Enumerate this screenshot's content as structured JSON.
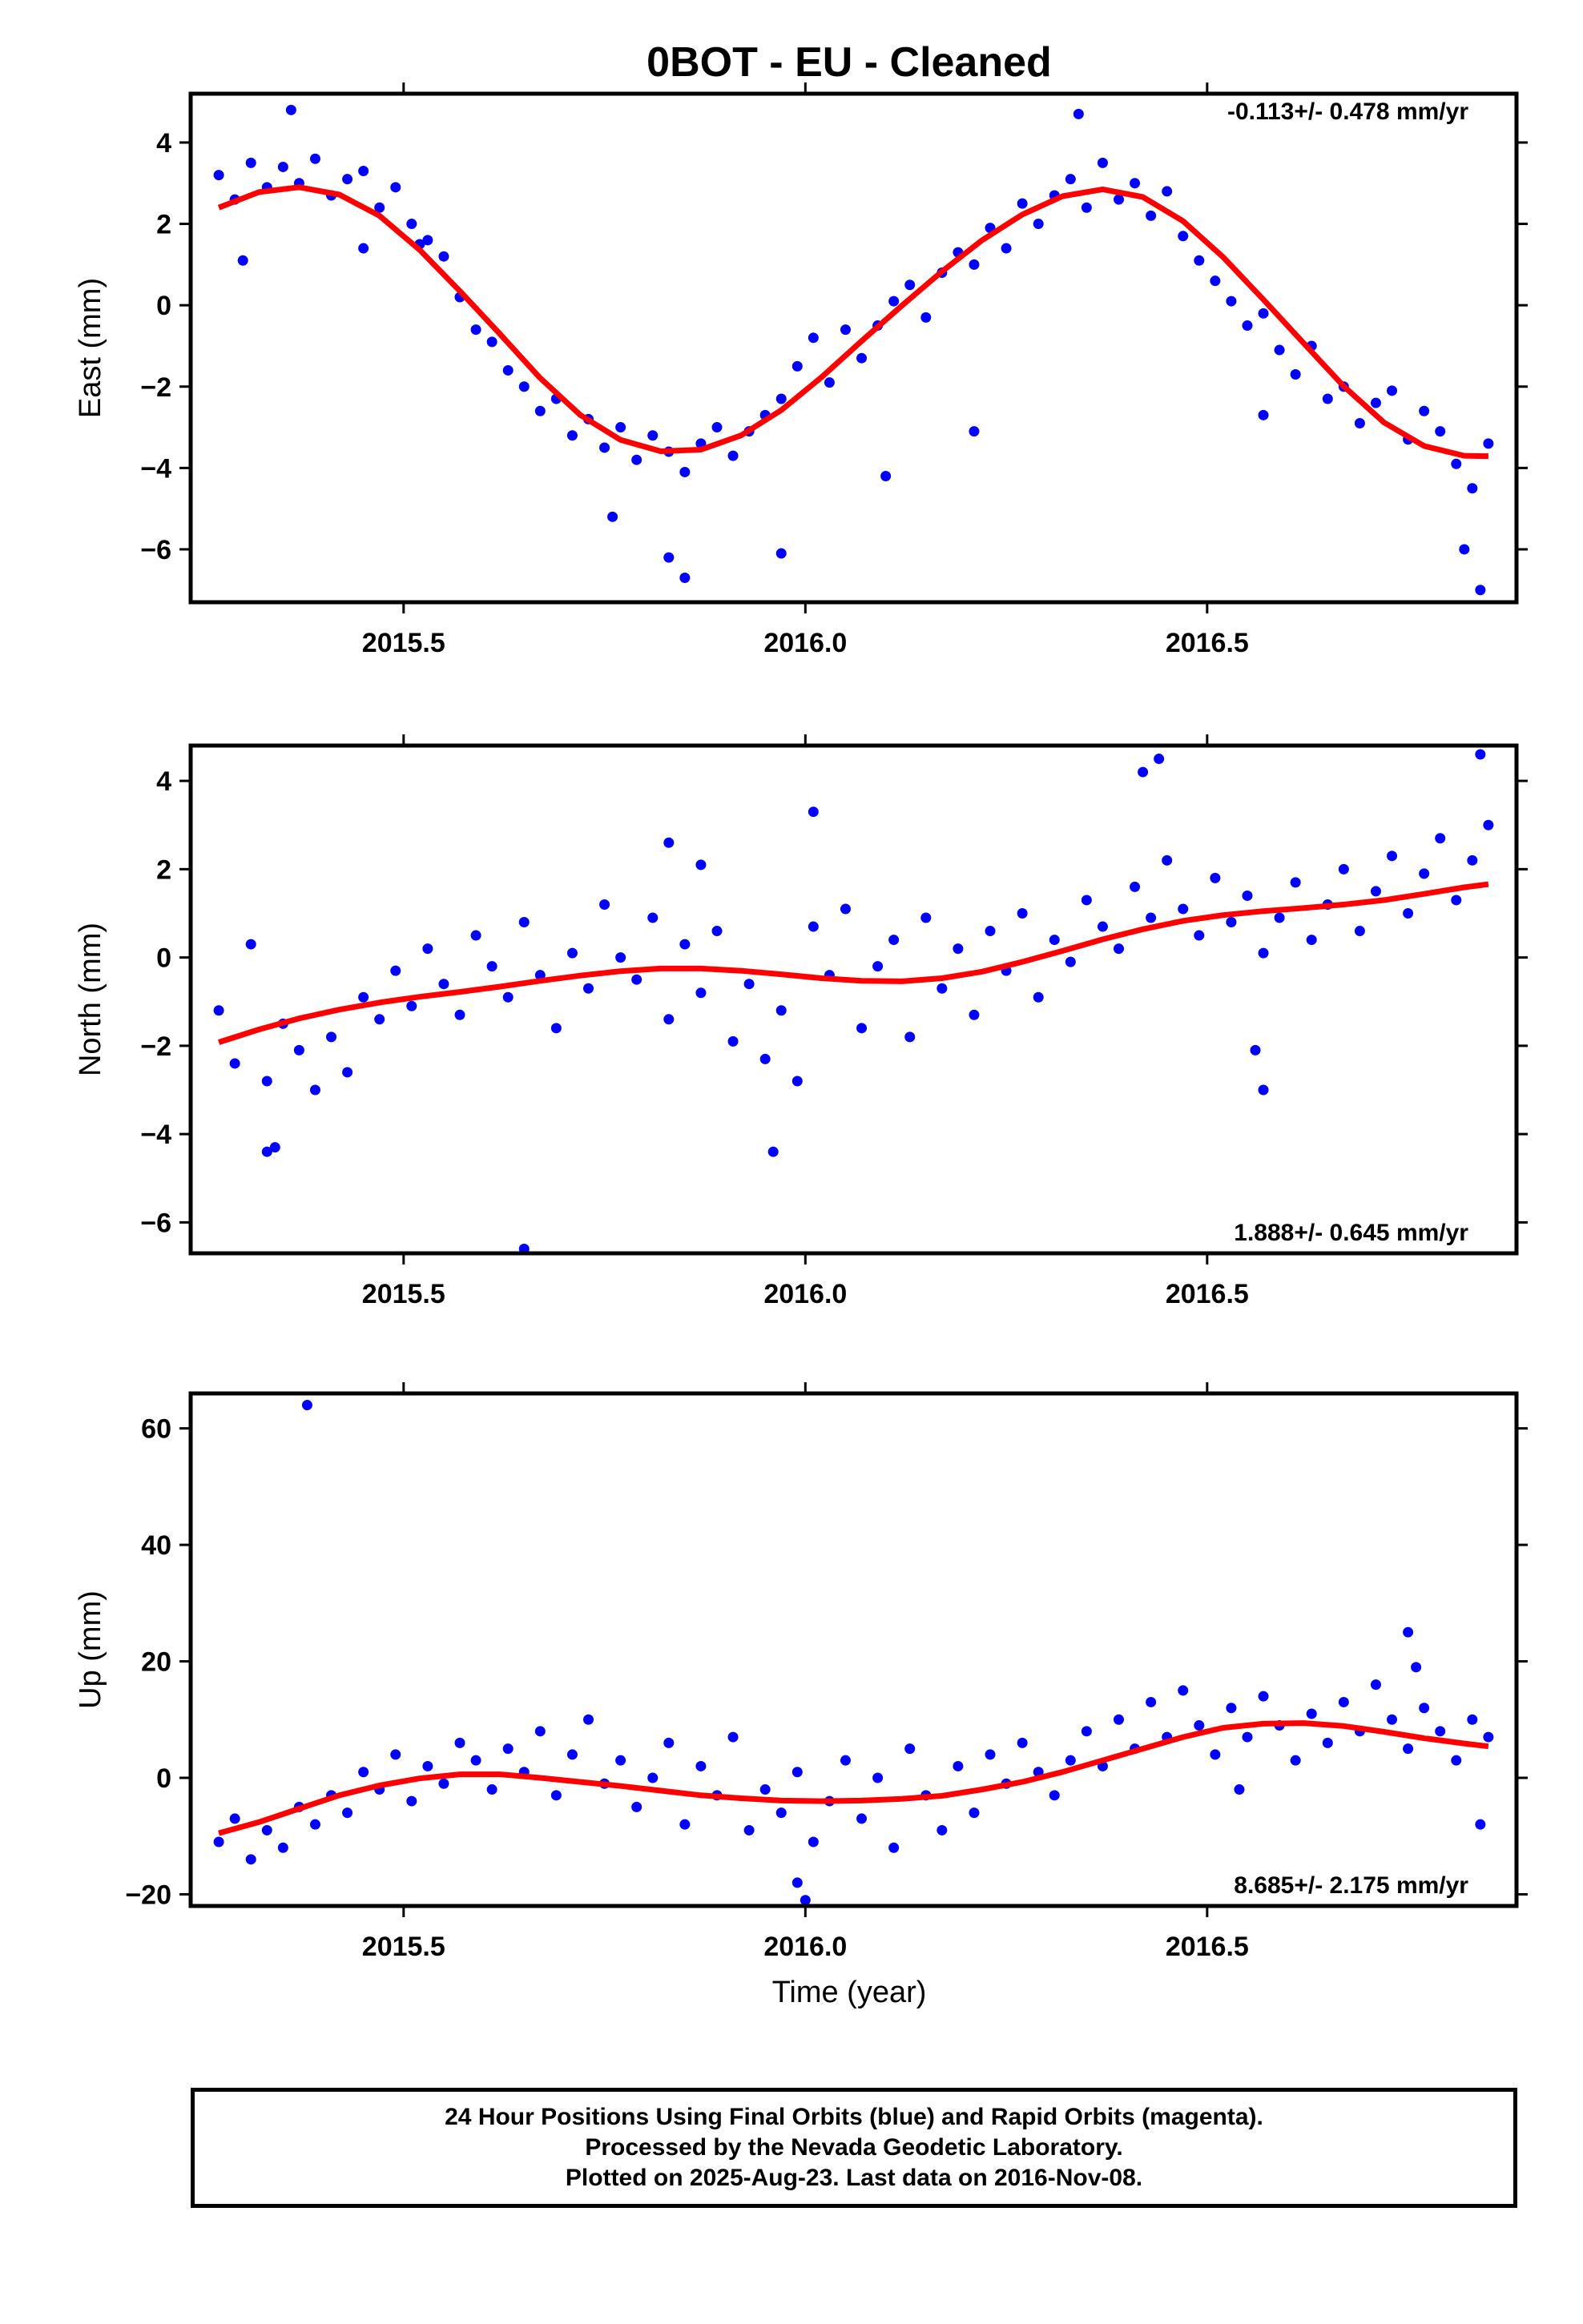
{
  "title": "0BOT  - EU - Cleaned",
  "colors": {
    "points": "#0000ff",
    "fit": "#ff0000",
    "frame": "#000000"
  },
  "footer": {
    "line1": "24 Hour Positions Using Final Orbits (blue) and Rapid Orbits (magenta).",
    "line2": "Processed by the Nevada Geodetic Laboratory.",
    "line3": "Plotted on 2025-Aug-23. Last data on 2016-Nov-08."
  },
  "chart_data": [
    {
      "type": "scatter",
      "title": "0BOT  - EU - Cleaned",
      "xlabel": "",
      "ylabel": "East (mm)",
      "xlim": [
        2015.235,
        2016.885
      ],
      "ylim": [
        -7.3,
        5.2
      ],
      "x_ticks": [
        2015.5,
        2016.0,
        2016.5
      ],
      "x_tick_labels": [
        "2015.5",
        "2016.0",
        "2016.5"
      ],
      "y_ticks": [
        -6,
        -4,
        -2,
        0,
        2,
        4
      ],
      "y_tick_labels": [
        "−6",
        "−4",
        "−2",
        "0",
        "2",
        "4"
      ],
      "rate": "-0.113+/- 0.478 mm/yr",
      "rate_position": "top-right",
      "series": [
        {
          "kind": "points",
          "x": [
            2015.27,
            2015.29,
            2015.31,
            2015.33,
            2015.35,
            2015.37,
            2015.39,
            2015.41,
            2015.43,
            2015.45,
            2015.47,
            2015.49,
            2015.51,
            2015.53,
            2015.55,
            2015.57,
            2015.59,
            2015.61,
            2015.63,
            2015.65,
            2015.67,
            2015.69,
            2015.71,
            2015.73,
            2015.75,
            2015.77,
            2015.79,
            2015.81,
            2015.83,
            2015.85,
            2015.87,
            2015.89,
            2015.91,
            2015.93,
            2015.95,
            2015.97,
            2015.99,
            2016.01,
            2016.03,
            2016.05,
            2016.07,
            2016.09,
            2016.11,
            2016.13,
            2016.15,
            2016.17,
            2016.19,
            2016.21,
            2016.23,
            2016.25,
            2016.27,
            2016.29,
            2016.31,
            2016.33,
            2016.35,
            2016.37,
            2016.39,
            2016.41,
            2016.43,
            2016.45,
            2016.47,
            2016.49,
            2016.51,
            2016.53,
            2016.55,
            2016.57,
            2016.59,
            2016.61,
            2016.63,
            2016.65,
            2016.67,
            2016.69,
            2016.71,
            2016.73,
            2016.75,
            2016.77,
            2016.79,
            2016.81,
            2016.83,
            2016.85,
            2015.3,
            2015.36,
            2015.45,
            2015.52,
            2015.76,
            2015.83,
            2015.85,
            2015.97,
            2016.1,
            2016.21,
            2016.34,
            2016.57,
            2016.82,
            2016.84
          ],
          "y": [
            3.2,
            2.6,
            3.5,
            2.9,
            3.4,
            3.0,
            3.6,
            2.7,
            3.1,
            3.3,
            2.4,
            2.9,
            2.0,
            1.6,
            1.2,
            0.2,
            -0.6,
            -0.9,
            -1.6,
            -2.0,
            -2.6,
            -2.3,
            -3.2,
            -2.8,
            -3.5,
            -3.0,
            -3.8,
            -3.2,
            -3.6,
            -4.1,
            -3.4,
            -3.0,
            -3.7,
            -3.1,
            -2.7,
            -2.3,
            -1.5,
            -0.8,
            -1.9,
            -0.6,
            -1.3,
            -0.5,
            0.1,
            0.5,
            -0.3,
            0.8,
            1.3,
            1.0,
            1.9,
            1.4,
            2.5,
            2.0,
            2.7,
            3.1,
            2.4,
            3.5,
            2.6,
            3.0,
            2.2,
            2.8,
            1.7,
            1.1,
            0.6,
            0.1,
            -0.5,
            -0.2,
            -1.1,
            -1.7,
            -1.0,
            -2.3,
            -2.0,
            -2.9,
            -2.4,
            -2.1,
            -3.3,
            -2.6,
            -3.1,
            -3.9,
            -4.5,
            -3.4,
            1.1,
            4.8,
            1.4,
            1.5,
            -5.2,
            -6.2,
            -6.7,
            -6.1,
            -4.2,
            -3.1,
            4.7,
            -2.7,
            -6.0,
            -7.0
          ]
        },
        {
          "kind": "fit",
          "x": [
            2015.27,
            2015.32,
            2015.37,
            2015.42,
            2015.47,
            2015.52,
            2015.57,
            2015.62,
            2015.67,
            2015.72,
            2015.77,
            2015.82,
            2015.87,
            2015.92,
            2015.97,
            2016.02,
            2016.07,
            2016.12,
            2016.17,
            2016.22,
            2016.27,
            2016.32,
            2016.37,
            2016.42,
            2016.47,
            2016.52,
            2016.57,
            2016.62,
            2016.67,
            2016.72,
            2016.77,
            2016.82,
            2016.85
          ],
          "y": [
            2.4,
            2.78,
            2.9,
            2.72,
            2.2,
            1.36,
            0.35,
            -0.71,
            -1.79,
            -2.7,
            -3.31,
            -3.59,
            -3.55,
            -3.2,
            -2.58,
            -1.77,
            -0.88,
            -0.01,
            0.83,
            1.6,
            2.23,
            2.68,
            2.85,
            2.66,
            2.07,
            1.18,
            0.14,
            -0.93,
            -1.99,
            -2.88,
            -3.46,
            -3.7,
            -3.71
          ]
        }
      ]
    },
    {
      "type": "scatter",
      "xlabel": "",
      "ylabel": "North (mm)",
      "xlim": [
        2015.235,
        2016.885
      ],
      "ylim": [
        -6.7,
        4.8
      ],
      "x_ticks": [
        2015.5,
        2016.0,
        2016.5
      ],
      "x_tick_labels": [
        "2015.5",
        "2016.0",
        "2016.5"
      ],
      "y_ticks": [
        -6,
        -4,
        -2,
        0,
        2,
        4
      ],
      "y_tick_labels": [
        "−6",
        "−4",
        "−2",
        "0",
        "2",
        "4"
      ],
      "rate": "1.888+/- 0.645 mm/yr",
      "rate_position": "bottom-right",
      "series": [
        {
          "kind": "points",
          "x": [
            2015.27,
            2015.29,
            2015.31,
            2015.33,
            2015.35,
            2015.37,
            2015.39,
            2015.41,
            2015.43,
            2015.45,
            2015.47,
            2015.49,
            2015.51,
            2015.53,
            2015.55,
            2015.57,
            2015.59,
            2015.61,
            2015.63,
            2015.65,
            2015.67,
            2015.69,
            2015.71,
            2015.73,
            2015.75,
            2015.77,
            2015.79,
            2015.81,
            2015.83,
            2015.85,
            2015.87,
            2015.89,
            2015.91,
            2015.93,
            2015.95,
            2015.97,
            2015.99,
            2016.01,
            2016.03,
            2016.05,
            2016.07,
            2016.09,
            2016.11,
            2016.13,
            2016.15,
            2016.17,
            2016.19,
            2016.21,
            2016.23,
            2016.25,
            2016.27,
            2016.29,
            2016.31,
            2016.33,
            2016.35,
            2016.37,
            2016.39,
            2016.41,
            2016.43,
            2016.45,
            2016.47,
            2016.49,
            2016.51,
            2016.53,
            2016.55,
            2016.57,
            2016.59,
            2016.61,
            2016.63,
            2016.65,
            2016.67,
            2016.69,
            2016.71,
            2016.73,
            2016.75,
            2016.77,
            2016.79,
            2016.81,
            2016.83,
            2016.85,
            2015.33,
            2015.34,
            2015.65,
            2015.83,
            2015.87,
            2015.96,
            2016.01,
            2016.42,
            2016.44,
            2016.56,
            2016.57,
            2016.84
          ],
          "y": [
            -1.2,
            -2.4,
            0.3,
            -2.8,
            -1.5,
            -2.1,
            -3.0,
            -1.8,
            -2.6,
            -0.9,
            -1.4,
            -0.3,
            -1.1,
            0.2,
            -0.6,
            -1.3,
            0.5,
            -0.2,
            -0.9,
            0.8,
            -0.4,
            -1.6,
            0.1,
            -0.7,
            1.2,
            0.0,
            -0.5,
            0.9,
            -1.4,
            0.3,
            -0.8,
            0.6,
            -1.9,
            -0.6,
            -2.3,
            -1.2,
            -2.8,
            0.7,
            -0.4,
            1.1,
            -1.6,
            -0.2,
            0.4,
            -1.8,
            0.9,
            -0.7,
            0.2,
            -1.3,
            0.6,
            -0.3,
            1.0,
            -0.9,
            0.4,
            -0.1,
            1.3,
            0.7,
            0.2,
            1.6,
            0.9,
            2.2,
            1.1,
            0.5,
            1.8,
            0.8,
            1.4,
            0.1,
            0.9,
            1.7,
            0.4,
            1.2,
            2.0,
            0.6,
            1.5,
            2.3,
            1.0,
            1.9,
            2.7,
            1.3,
            2.2,
            3.0,
            -4.4,
            -4.3,
            -6.6,
            2.6,
            2.1,
            -4.4,
            3.3,
            4.2,
            4.5,
            -2.1,
            -3.0,
            4.6
          ]
        },
        {
          "kind": "fit",
          "x": [
            2015.27,
            2015.32,
            2015.37,
            2015.42,
            2015.47,
            2015.52,
            2015.57,
            2015.62,
            2015.67,
            2015.72,
            2015.77,
            2015.82,
            2015.87,
            2015.92,
            2015.97,
            2016.02,
            2016.07,
            2016.12,
            2016.17,
            2016.22,
            2016.27,
            2016.32,
            2016.37,
            2016.42,
            2016.47,
            2016.52,
            2016.57,
            2016.62,
            2016.67,
            2016.72,
            2016.77,
            2016.82,
            2016.85
          ],
          "y": [
            -1.92,
            -1.63,
            -1.38,
            -1.18,
            -1.02,
            -0.89,
            -0.78,
            -0.66,
            -0.53,
            -0.41,
            -0.31,
            -0.25,
            -0.25,
            -0.3,
            -0.38,
            -0.47,
            -0.53,
            -0.54,
            -0.47,
            -0.32,
            -0.1,
            0.15,
            0.41,
            0.64,
            0.83,
            0.96,
            1.05,
            1.12,
            1.2,
            1.3,
            1.44,
            1.59,
            1.66
          ]
        }
      ]
    },
    {
      "type": "scatter",
      "xlabel": "Time (year)",
      "ylabel": "Up (mm)",
      "xlim": [
        2015.235,
        2016.885
      ],
      "ylim": [
        -22,
        66
      ],
      "x_ticks": [
        2015.5,
        2016.0,
        2016.5
      ],
      "x_tick_labels": [
        "2015.5",
        "2016.0",
        "2016.5"
      ],
      "y_ticks": [
        -20,
        0,
        20,
        40,
        60
      ],
      "y_tick_labels": [
        "−20",
        "0",
        "20",
        "40",
        "60"
      ],
      "rate": "8.685+/- 2.175 mm/yr",
      "rate_position": "bottom-right",
      "series": [
        {
          "kind": "points",
          "x": [
            2015.27,
            2015.29,
            2015.31,
            2015.33,
            2015.35,
            2015.37,
            2015.39,
            2015.41,
            2015.43,
            2015.45,
            2015.47,
            2015.49,
            2015.51,
            2015.53,
            2015.55,
            2015.57,
            2015.59,
            2015.61,
            2015.63,
            2015.65,
            2015.67,
            2015.69,
            2015.71,
            2015.73,
            2015.75,
            2015.77,
            2015.79,
            2015.81,
            2015.83,
            2015.85,
            2015.87,
            2015.89,
            2015.91,
            2015.93,
            2015.95,
            2015.97,
            2015.99,
            2016.01,
            2016.03,
            2016.05,
            2016.07,
            2016.09,
            2016.11,
            2016.13,
            2016.15,
            2016.17,
            2016.19,
            2016.21,
            2016.23,
            2016.25,
            2016.27,
            2016.29,
            2016.31,
            2016.33,
            2016.35,
            2016.37,
            2016.39,
            2016.41,
            2016.43,
            2016.45,
            2016.47,
            2016.49,
            2016.51,
            2016.53,
            2016.55,
            2016.57,
            2016.59,
            2016.61,
            2016.63,
            2016.65,
            2016.67,
            2016.69,
            2016.71,
            2016.73,
            2016.75,
            2016.77,
            2016.79,
            2016.81,
            2016.83,
            2016.85,
            2015.38,
            2015.99,
            2016.0,
            2016.54,
            2016.75,
            2016.76,
            2016.84
          ],
          "y": [
            -11,
            -7,
            -14,
            -9,
            -12,
            -5,
            -8,
            -3,
            -6,
            1,
            -2,
            4,
            -4,
            2,
            -1,
            6,
            3,
            -2,
            5,
            1,
            8,
            -3,
            4,
            10,
            -1,
            3,
            -5,
            0,
            6,
            -8,
            2,
            -3,
            7,
            -9,
            -2,
            -6,
            1,
            -11,
            -4,
            3,
            -7,
            0,
            -12,
            5,
            -3,
            -9,
            2,
            -6,
            4,
            -1,
            6,
            1,
            -3,
            3,
            8,
            2,
            10,
            5,
            13,
            7,
            15,
            9,
            4,
            12,
            7,
            14,
            9,
            3,
            11,
            6,
            13,
            8,
            16,
            10,
            5,
            12,
            8,
            3,
            10,
            7,
            64,
            -18,
            -21,
            -2,
            25,
            19,
            -8
          ]
        },
        {
          "kind": "fit",
          "x": [
            2015.27,
            2015.32,
            2015.37,
            2015.42,
            2015.47,
            2015.52,
            2015.57,
            2015.62,
            2015.67,
            2015.72,
            2015.77,
            2015.82,
            2015.87,
            2015.92,
            2015.97,
            2016.02,
            2016.07,
            2016.12,
            2016.17,
            2016.22,
            2016.27,
            2016.32,
            2016.37,
            2016.42,
            2016.47,
            2016.52,
            2016.57,
            2016.62,
            2016.67,
            2016.72,
            2016.77,
            2016.82,
            2016.85
          ],
          "y": [
            -9.5,
            -7.6,
            -5.3,
            -3.0,
            -1.3,
            -0.1,
            0.6,
            0.6,
            0.0,
            -0.7,
            -1.4,
            -2.2,
            -3.0,
            -3.5,
            -3.9,
            -4.0,
            -3.9,
            -3.6,
            -3.1,
            -2.0,
            -0.7,
            1.0,
            3.0,
            5.0,
            7.0,
            8.6,
            9.3,
            9.4,
            8.9,
            7.9,
            6.8,
            5.9,
            5.4
          ]
        }
      ]
    }
  ]
}
